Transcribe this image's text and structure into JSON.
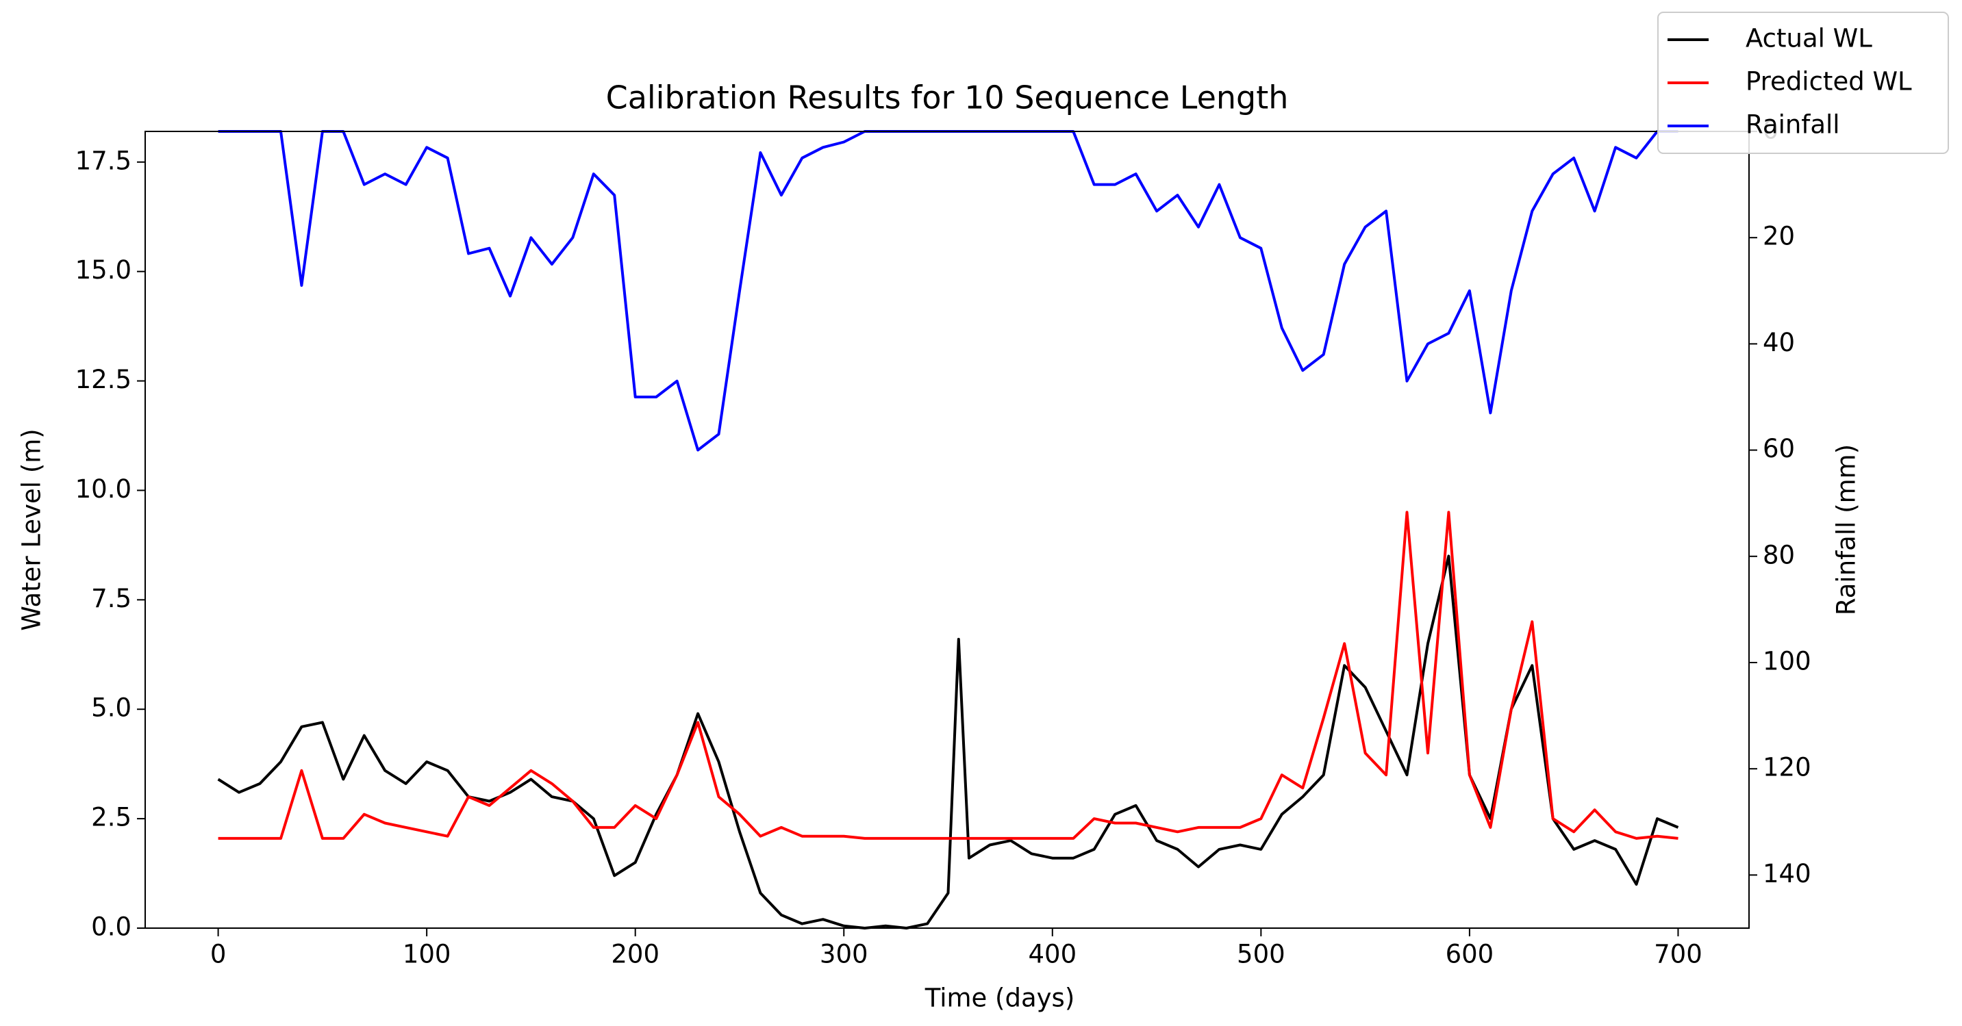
{
  "chart_data": {
    "type": "line",
    "title": "Calibration Results for 10 Sequence Length",
    "xlabel": "Time (days)",
    "ylabel": "Water Level (m)",
    "y2label": "Rainfall (mm)",
    "x": [
      0,
      10,
      20,
      30,
      40,
      50,
      60,
      70,
      80,
      90,
      100,
      110,
      120,
      130,
      140,
      150,
      160,
      170,
      180,
      190,
      200,
      210,
      220,
      230,
      240,
      250,
      260,
      270,
      280,
      290,
      300,
      310,
      320,
      330,
      340,
      350,
      355,
      360,
      370,
      380,
      390,
      400,
      410,
      420,
      430,
      440,
      450,
      460,
      470,
      480,
      490,
      500,
      510,
      520,
      530,
      540,
      550,
      560,
      570,
      580,
      590,
      600,
      610,
      620,
      630,
      640,
      650,
      660,
      670,
      680,
      690,
      700
    ],
    "series": [
      {
        "name": "Actual WL",
        "color": "#000000",
        "values": [
          3.4,
          3.1,
          3.3,
          3.8,
          4.6,
          4.7,
          3.4,
          4.4,
          3.6,
          3.3,
          3.8,
          3.6,
          3.0,
          2.9,
          3.1,
          3.4,
          3.0,
          2.9,
          2.5,
          1.2,
          1.5,
          2.6,
          3.5,
          4.9,
          3.8,
          2.2,
          0.8,
          0.3,
          0.1,
          0.2,
          0.05,
          0,
          0.05,
          0,
          0.1,
          0.8,
          6.6,
          1.6,
          1.9,
          2.0,
          1.7,
          1.6,
          1.6,
          1.8,
          2.6,
          2.8,
          2.0,
          1.8,
          1.4,
          1.8,
          1.9,
          1.8,
          2.6,
          3.0,
          3.5,
          6.0,
          5.5,
          4.5,
          3.5,
          6.5,
          8.5,
          3.5,
          2.5,
          5.0,
          6.0,
          2.5,
          1.8,
          2.0,
          1.8,
          1.0,
          2.5,
          2.3
        ]
      },
      {
        "name": "Predicted WL",
        "color": "#ff0000",
        "values": [
          2.05,
          2.05,
          2.05,
          2.05,
          3.6,
          2.05,
          2.05,
          2.6,
          2.4,
          2.3,
          2.2,
          2.1,
          3.0,
          2.8,
          3.2,
          3.6,
          3.3,
          2.9,
          2.3,
          2.3,
          2.8,
          2.5,
          3.5,
          4.7,
          3.0,
          2.6,
          2.1,
          2.3,
          2.1,
          2.1,
          2.1,
          2.05,
          2.05,
          2.05,
          2.05,
          2.05,
          2.05,
          2.05,
          2.05,
          2.05,
          2.05,
          2.05,
          2.05,
          2.5,
          2.4,
          2.4,
          2.3,
          2.2,
          2.3,
          2.3,
          2.3,
          2.5,
          3.5,
          3.2,
          4.8,
          6.5,
          4.0,
          3.5,
          9.5,
          4.0,
          9.5,
          3.5,
          2.3,
          5.0,
          7.0,
          2.5,
          2.2,
          2.7,
          2.2,
          2.05,
          2.1,
          2.05
        ]
      },
      {
        "name": "Rainfall",
        "color": "#0000ff",
        "axis": "y2",
        "values": [
          0,
          0,
          0,
          0,
          29,
          0,
          0,
          10,
          8,
          10,
          3,
          5,
          23,
          22,
          31,
          20,
          25,
          20,
          8,
          12,
          50,
          50,
          47,
          60,
          57,
          30,
          4,
          12,
          5,
          3,
          2,
          0,
          0,
          0,
          0,
          0,
          0,
          0,
          0,
          0,
          0,
          0,
          0,
          10,
          10,
          8,
          15,
          12,
          18,
          10,
          20,
          22,
          37,
          45,
          42,
          25,
          18,
          15,
          47,
          40,
          38,
          30,
          53,
          30,
          15,
          8,
          5,
          15,
          3,
          5,
          0,
          0
        ]
      }
    ],
    "xlim": [
      -35,
      734
    ],
    "xticks": [
      0,
      100,
      200,
      300,
      400,
      500,
      600,
      700
    ],
    "ylim": [
      0,
      18.2
    ],
    "yticks": [
      {
        "value": 0,
        "label": "0.0"
      },
      {
        "value": 2.5,
        "label": "2.5"
      },
      {
        "value": 5,
        "label": "5.0"
      },
      {
        "value": 7.5,
        "label": "7.5"
      },
      {
        "value": 10,
        "label": "10.0"
      },
      {
        "value": 12.5,
        "label": "12.5"
      },
      {
        "value": 15,
        "label": "15.0"
      },
      {
        "value": 17.5,
        "label": "17.5"
      }
    ],
    "y2lim": [
      150,
      0
    ],
    "y2ticks": [
      0,
      20,
      40,
      60,
      80,
      100,
      120,
      140
    ],
    "grid": false,
    "legend": "upper right"
  }
}
